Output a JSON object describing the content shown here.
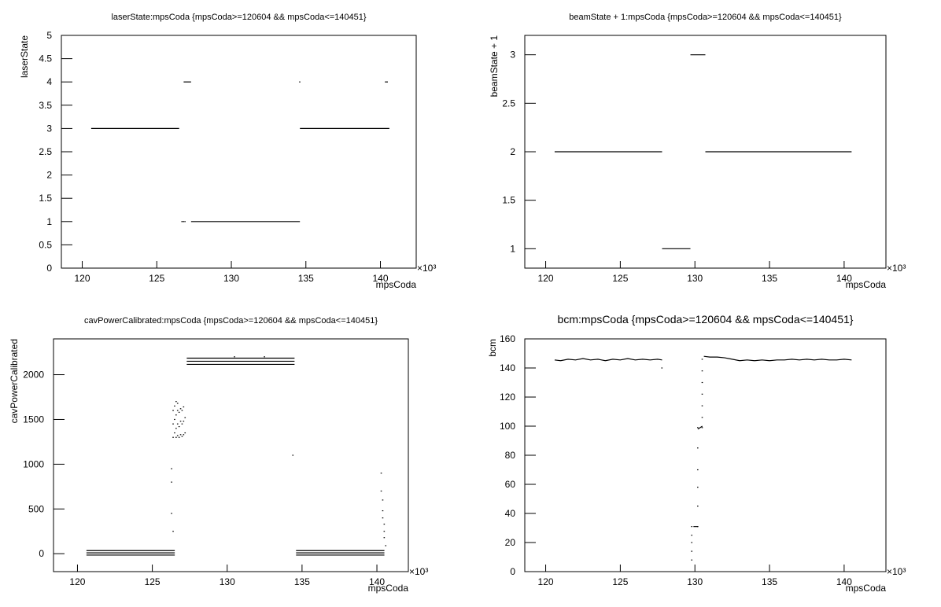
{
  "chart_data": [
    {
      "type": "scatter",
      "title": "laserState:mpsCoda {mpsCoda>=120604 && mpsCoda<=140451}",
      "x_label": "mpsCoda",
      "y_label": "laserState",
      "x_multiplier": "×10³",
      "color": "#000000",
      "xlim": [
        118.6,
        142.4
      ],
      "xticks": [
        120,
        125,
        130,
        135,
        140
      ],
      "ylim": [
        0,
        5
      ],
      "yticks": [
        0,
        0.5,
        1,
        1.5,
        2,
        2.5,
        3,
        3.5,
        4,
        4.5,
        5
      ],
      "series": [
        {
          "type": "line",
          "x": [
            120.6,
            126.5
          ],
          "values": [
            3,
            3
          ]
        },
        {
          "type": "line",
          "x": [
            126.8,
            127.3
          ],
          "values": [
            4,
            4
          ]
        },
        {
          "type": "scatter",
          "x": [
            126.7,
            126.8,
            126.9
          ],
          "values": [
            1,
            1,
            1
          ]
        },
        {
          "type": "line",
          "x": [
            127.3,
            134.6
          ],
          "values": [
            1,
            1
          ]
        },
        {
          "type": "scatter",
          "x": [
            134.6
          ],
          "values": [
            4
          ]
        },
        {
          "type": "line",
          "x": [
            134.6,
            140.6
          ],
          "values": [
            3,
            3
          ]
        },
        {
          "type": "line",
          "x": [
            140.3,
            140.5
          ],
          "values": [
            4,
            4
          ]
        }
      ]
    },
    {
      "type": "scatter",
      "title": "beamState + 1:mpsCoda {mpsCoda>=120604 && mpsCoda<=140451}",
      "x_label": "mpsCoda",
      "y_label": "beamState + 1",
      "x_multiplier": "×10³",
      "color": "#000000",
      "xlim": [
        118.6,
        142.8
      ],
      "xticks": [
        120,
        125,
        130,
        135,
        140
      ],
      "ylim": [
        0.8,
        3.2
      ],
      "yticks": [
        1,
        1.5,
        2,
        2.5,
        3
      ],
      "series": [
        {
          "type": "line",
          "x": [
            120.6,
            127.8
          ],
          "values": [
            2,
            2
          ]
        },
        {
          "type": "line",
          "x": [
            127.8,
            129.7
          ],
          "values": [
            1,
            1
          ]
        },
        {
          "type": "line",
          "x": [
            129.7,
            130.7
          ],
          "values": [
            3,
            3
          ]
        },
        {
          "type": "line",
          "x": [
            130.7,
            140.5
          ],
          "values": [
            2,
            2
          ]
        }
      ]
    },
    {
      "type": "scatter",
      "title": "cavPowerCalibrated:mpsCoda {mpsCoda>=120604 && mpsCoda<=140451}",
      "x_label": "mpsCoda",
      "y_label": "cavPowerCalibrated",
      "x_multiplier": "×10³",
      "color": "#000000",
      "xlim": [
        118.4,
        142.1
      ],
      "xticks": [
        120,
        125,
        130,
        135,
        140
      ],
      "ylim": [
        -200,
        2400
      ],
      "yticks": [
        0,
        500,
        1000,
        1500,
        2000
      ],
      "series": [
        {
          "type": "line",
          "x": [
            120.6,
            126.5
          ],
          "values": [
            35,
            35
          ]
        },
        {
          "type": "line",
          "x": [
            120.6,
            126.5
          ],
          "values": [
            10,
            10
          ]
        },
        {
          "type": "line",
          "x": [
            120.6,
            126.5
          ],
          "values": [
            -15,
            -15
          ]
        },
        {
          "type": "line",
          "x": [
            134.6,
            140.5
          ],
          "values": [
            35,
            35
          ]
        },
        {
          "type": "line",
          "x": [
            134.6,
            140.5
          ],
          "values": [
            10,
            10
          ]
        },
        {
          "type": "line",
          "x": [
            134.6,
            140.5
          ],
          "values": [
            -15,
            -15
          ]
        },
        {
          "type": "line",
          "x": [
            127.3,
            134.5
          ],
          "values": [
            2185,
            2185
          ]
        },
        {
          "type": "line",
          "x": [
            127.3,
            134.5
          ],
          "values": [
            2150,
            2150
          ]
        },
        {
          "type": "line",
          "x": [
            127.3,
            134.5
          ],
          "values": [
            2115,
            2115
          ]
        },
        {
          "type": "scatter",
          "x": [
            126.4,
            126.4,
            126.4,
            126.5,
            126.5,
            126.5,
            126.6,
            126.6,
            126.6,
            126.6,
            126.7,
            126.7,
            126.7,
            126.7,
            126.8,
            126.8,
            126.8,
            126.9,
            126.9,
            126.9,
            127.0,
            127.0,
            127.0,
            127.1,
            127.1,
            127.1,
            127.2,
            127.2,
            126.3,
            126.3,
            126.3,
            126.4
          ],
          "values": [
            1300,
            1450,
            1600,
            1350,
            1500,
            1650,
            1300,
            1400,
            1550,
            1700,
            1320,
            1450,
            1600,
            1680,
            1300,
            1420,
            1580,
            1330,
            1480,
            1620,
            1310,
            1450,
            1600,
            1330,
            1480,
            1640,
            1350,
            1520,
            950,
            800,
            450,
            250
          ]
        },
        {
          "type": "scatter",
          "x": [
            134.4,
            130.5,
            132.5,
            140.3,
            140.3,
            140.4,
            140.4,
            140.4,
            140.5,
            140.5,
            140.5,
            140.6
          ],
          "values": [
            1100,
            2200,
            2200,
            900,
            700,
            600,
            480,
            400,
            330,
            250,
            180,
            90
          ]
        }
      ]
    },
    {
      "type": "scatter",
      "title": "bcm:mpsCoda {mpsCoda>=120604 && mpsCoda<=140451}",
      "x_label": "mpsCoda",
      "y_label": "bcm",
      "x_multiplier": "×10³",
      "color": "#000000",
      "xlim": [
        118.6,
        142.8
      ],
      "xticks": [
        120,
        125,
        130,
        135,
        140
      ],
      "ylim": [
        0,
        160
      ],
      "yticks": [
        0,
        20,
        40,
        60,
        80,
        100,
        120,
        140,
        160
      ],
      "series": [
        {
          "type": "line",
          "x": [
            120.6,
            121,
            121.5,
            122,
            122.5,
            123,
            123.5,
            124,
            124.5,
            125,
            125.5,
            126,
            126.5,
            127,
            127.5,
            127.8
          ],
          "values": [
            145.5,
            145,
            146,
            145.5,
            146.5,
            145.5,
            146,
            145,
            146,
            145.5,
            146.5,
            145.5,
            146,
            145.5,
            146,
            145.5
          ]
        },
        {
          "type": "scatter",
          "x": [
            127.8,
            129.8,
            129.8,
            129.8,
            129.8,
            129.8,
            130.2,
            130.2,
            130.2,
            130.2,
            130.2,
            130.2,
            130.5,
            130.5,
            130.5,
            130.5,
            130.5,
            130.5,
            130.5
          ],
          "values": [
            140,
            8,
            14,
            20,
            25,
            31,
            31,
            45,
            58,
            70,
            85,
            99,
            99,
            106,
            114,
            122,
            130,
            138,
            146
          ]
        },
        {
          "type": "line",
          "x": [
            129.9,
            130.2
          ],
          "values": [
            31,
            31
          ]
        },
        {
          "type": "line",
          "x": [
            130.2,
            130.5
          ],
          "values": [
            98,
            100
          ]
        },
        {
          "type": "line",
          "x": [
            130.6,
            131,
            131.5,
            132,
            132.5,
            133,
            133.5,
            134,
            134.5,
            135,
            135.5,
            136,
            136.5,
            137,
            137.5,
            138,
            138.5,
            139,
            139.5,
            140,
            140.5
          ],
          "values": [
            148,
            147.5,
            147.5,
            147,
            146,
            145,
            145.5,
            145,
            145.5,
            145,
            145.5,
            145.5,
            146,
            145.5,
            146,
            145.5,
            146,
            145.5,
            145.5,
            146,
            145.5
          ]
        }
      ]
    }
  ]
}
